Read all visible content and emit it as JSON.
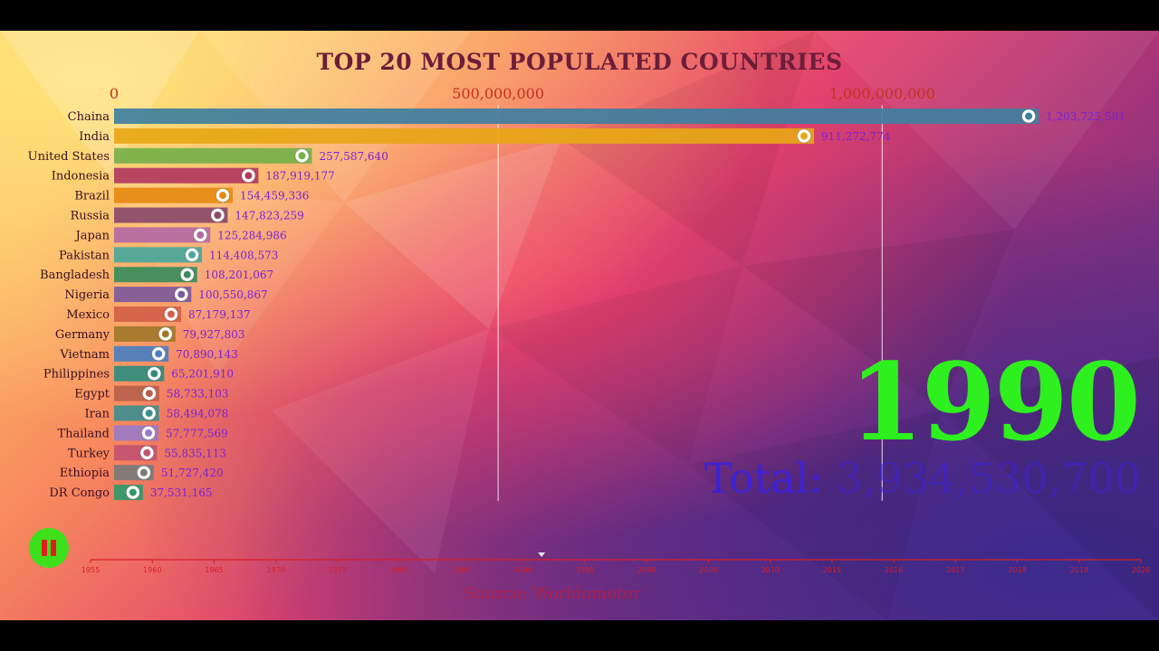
{
  "chart_data": {
    "type": "bar",
    "orientation": "horizontal",
    "title": "TOP 20 MOST POPULATED COUNTRIES",
    "xticks": [
      {
        "value": 0,
        "label": "0"
      },
      {
        "value": 500000000,
        "label": "500,000,000"
      },
      {
        "value": 1000000000,
        "label": "1,000,000,000"
      }
    ],
    "xlim": [
      0,
      1285000000
    ],
    "categories": [
      "Chaina",
      "India",
      "United States",
      "Indonesia",
      "Brazil",
      "Russia",
      "Japan",
      "Pakistan",
      "Bangladesh",
      "Nigeria",
      "Mexico",
      "Germany",
      "Vietnam",
      "Philippines",
      "Egypt",
      "Iran",
      "Thailand",
      "Turkey",
      "Ethiopia",
      "DR Congo"
    ],
    "values": [
      1203725581,
      911272774,
      257587640,
      187919177,
      154459336,
      147823259,
      125284986,
      114408573,
      108201067,
      100550867,
      87179137,
      79927803,
      70890143,
      65201910,
      58733103,
      58494078,
      57777569,
      55835113,
      51727420,
      37531165
    ],
    "value_labels": [
      "1,203,725,581",
      "911,272,774",
      "257,587,640",
      "187,919,177",
      "154,459,336",
      "147,823,259",
      "125,284,986",
      "114,408,573",
      "108,201,067",
      "100,550,867",
      "87,179,137",
      "79,927,803",
      "70,890,143",
      "65,201,910",
      "58,733,103",
      "58,494,078",
      "57,777,569",
      "55,835,113",
      "51,727,420",
      "37,531,165"
    ],
    "bar_colors": [
      "#3f7fa0",
      "#e7a616",
      "#76b04a",
      "#b23a5e",
      "#e68a12",
      "#8a4a6a",
      "#b56aa4",
      "#4aa79c",
      "#3a8c5c",
      "#7d5a9c",
      "#d25f48",
      "#a1782a",
      "#4a7fc0",
      "#2e8c7c",
      "#b8614a",
      "#3f8e8e",
      "#9a7bc4",
      "#c25272",
      "#7a7a7a",
      "#2e9a6a"
    ],
    "flags": [
      "cn-flag",
      "in-flag",
      "us-flag",
      "id-flag",
      "br-flag",
      "ru-flag",
      "jp-flag",
      "pk-flag",
      "bd-flag",
      "ng-flag",
      "mx-flag",
      "de-flag",
      "vn-flag",
      "ph-flag",
      "eg-flag",
      "ir-flag",
      "th-flag",
      "tr-flag",
      "et-flag",
      "cd-flag"
    ],
    "year": "1990",
    "total_label": "Total:",
    "total_value": "3,934,530,700",
    "timeline": {
      "years": [
        "1955",
        "1960",
        "1965",
        "1970",
        "1975",
        "1980",
        "1985",
        "1990",
        "1995",
        "2000",
        "2005",
        "2010",
        "2015",
        "2016",
        "2017",
        "2018",
        "2019",
        "2020"
      ],
      "current": "1990"
    },
    "source": "Source: Worldometer",
    "colors": {
      "title": "#6b1d3a",
      "axis_tick": "#c4311f",
      "category_label": "#3a0e22",
      "value_label": "#7a22d8",
      "year": "#2ff01f",
      "total": "#3d22d6",
      "timeline": "#d61f2a"
    }
  },
  "controls": {
    "play_pause_icon": "pause-icon"
  }
}
